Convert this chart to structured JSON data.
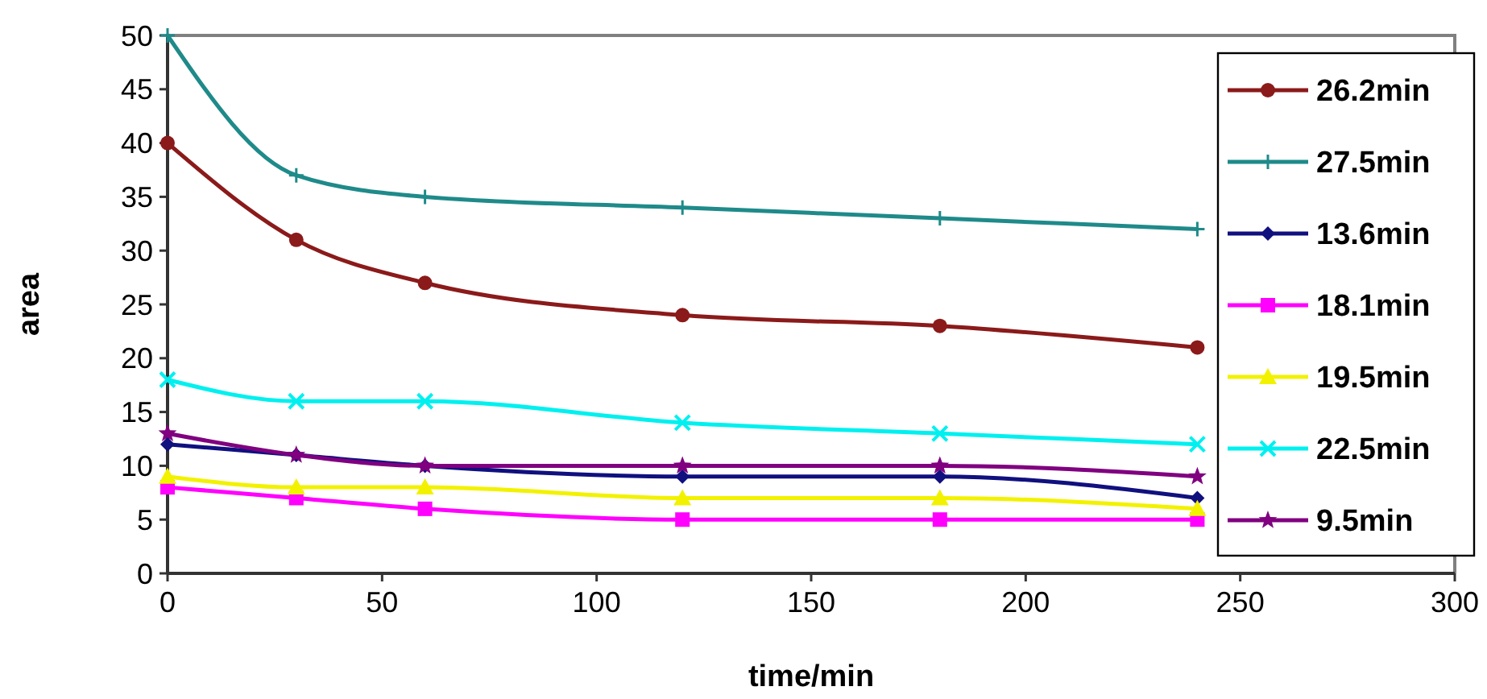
{
  "chart_data": {
    "type": "line",
    "xlabel": "time/min",
    "ylabel": "area",
    "x": [
      0,
      30,
      60,
      120,
      180,
      240
    ],
    "xlim": [
      0,
      300
    ],
    "xticks": [
      0,
      50,
      100,
      150,
      200,
      250,
      300
    ],
    "ylim": [
      0,
      50
    ],
    "yticks": [
      0,
      5,
      10,
      15,
      20,
      25,
      30,
      35,
      40,
      45,
      50
    ],
    "grid": false,
    "legend": "right",
    "series": [
      {
        "name": "26.2min",
        "color": "#8b1a1a",
        "marker": "circle",
        "values": [
          40,
          31,
          27,
          24,
          23,
          21
        ]
      },
      {
        "name": "27.5min",
        "color": "#1f8a8a",
        "marker": "plus",
        "values": [
          50,
          37,
          35,
          34,
          33,
          32
        ]
      },
      {
        "name": "13.6min",
        "color": "#10107f",
        "marker": "diamond",
        "values": [
          12,
          11,
          10,
          9,
          9,
          7
        ]
      },
      {
        "name": "18.1min",
        "color": "#ff00ff",
        "marker": "square",
        "values": [
          8,
          7,
          6,
          5,
          5,
          5
        ]
      },
      {
        "name": "19.5min",
        "color": "#f2f200",
        "marker": "triangle",
        "values": [
          9,
          8,
          8,
          7,
          7,
          6
        ]
      },
      {
        "name": "22.5min",
        "color": "#00f0f0",
        "marker": "cross",
        "values": [
          18,
          16,
          16,
          14,
          13,
          12
        ]
      },
      {
        "name": "9.5min",
        "color": "#800080",
        "marker": "star",
        "values": [
          13,
          11,
          10,
          10,
          10,
          9
        ]
      }
    ]
  }
}
